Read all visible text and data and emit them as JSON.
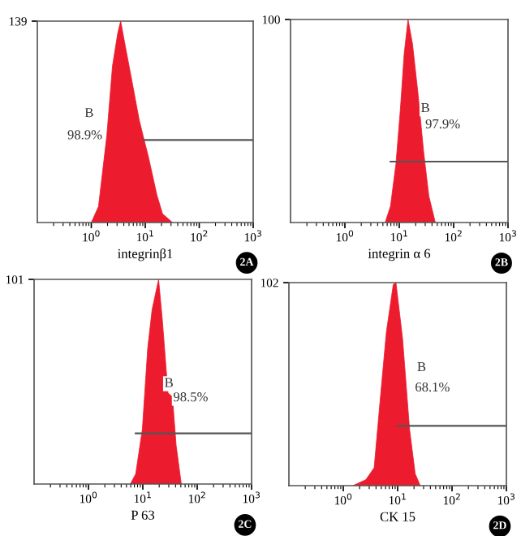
{
  "chart_data": [
    {
      "type": "area",
      "xlabel": "integrinβ1",
      "log": "x",
      "xlim": [
        0.1,
        1000
      ],
      "xticks": [
        {
          "value": 1,
          "label": "10$^{0}$"
        },
        {
          "value": 10,
          "label": "10$^{1}$"
        },
        {
          "value": 100,
          "label": "10$^{2}$"
        },
        {
          "value": 1000,
          "label": "10$^{3}$"
        }
      ],
      "ylim": [
        0,
        139
      ],
      "yticks": [
        139
      ],
      "series": [
        {
          "color": "#ec1c2e",
          "x": [
            1,
            1.36,
            1.94,
            2.47,
            3.1,
            3.5,
            4.2,
            5.7,
            7.7,
            9.1,
            11.5,
            16.4,
            20.9,
            32
          ],
          "values": [
            0,
            11,
            60,
            108,
            131,
            139,
            123,
            97,
            71,
            60,
            45,
            19,
            6,
            0
          ]
        },
        {
          "type": "line",
          "color": "#555555",
          "x": [
            9.1,
            1000
          ],
          "values": [
            57,
            57
          ]
        }
      ],
      "annotations": [
        "B",
        "98.9%",
        "2A"
      ]
    },
    {
      "type": "area",
      "xlabel": "integrin α 6",
      "log": "x",
      "xlim": [
        0.1,
        1000
      ],
      "xticks": [
        {
          "value": 1,
          "label": "10$^{0}$"
        },
        {
          "value": 10,
          "label": "10$^{1}$"
        },
        {
          "value": 100,
          "label": "10$^{2}$"
        },
        {
          "value": 1000,
          "label": "10$^{3}$"
        }
      ],
      "ylim": [
        0,
        100
      ],
      "yticks": [
        100
      ],
      "series": [
        {
          "color": "#ec1c2e",
          "x": [
            5.5,
            6.9,
            8.7,
            10.5,
            12.3,
            14.5,
            17.5,
            22,
            28,
            35,
            46
          ],
          "values": [
            0,
            8,
            29,
            56,
            83,
            100,
            88,
            64,
            35,
            13,
            0
          ]
        },
        {
          "type": "line",
          "color": "#555555",
          "x": [
            6.9,
            1000
          ],
          "values": [
            30,
            30
          ]
        }
      ],
      "annotations": [
        "B",
        "97.9%",
        "2B"
      ]
    },
    {
      "type": "area",
      "xlabel": "P 63",
      "log": "x",
      "xlim": [
        0.1,
        1000
      ],
      "xticks": [
        {
          "value": 1,
          "label": "10$^{0}$"
        },
        {
          "value": 10,
          "label": "10$^{1}$"
        },
        {
          "value": 100,
          "label": "10$^{2}$"
        },
        {
          "value": 1000,
          "label": "10$^{3}$"
        }
      ],
      "ylim": [
        0,
        101
      ],
      "yticks": [
        101
      ],
      "series": [
        {
          "color": "#ec1c2e",
          "x": [
            5.9,
            7.4,
            9.8,
            12.3,
            14.8,
            19.5,
            23,
            29,
            35,
            41,
            51
          ],
          "values": [
            0,
            5,
            27,
            67,
            86,
            101,
            80,
            45,
            43,
            19,
            0
          ]
        },
        {
          "type": "line",
          "color": "#555555",
          "x": [
            7.4,
            1000
          ],
          "values": [
            25,
            25
          ]
        }
      ],
      "annotations": [
        "B",
        "98.5%",
        "2C"
      ]
    },
    {
      "type": "area",
      "xlabel": "CK 15",
      "log": "x",
      "xlim": [
        0.1,
        1000
      ],
      "xticks": [
        {
          "value": 1,
          "label": "10$^{0}$"
        },
        {
          "value": 10,
          "label": "10$^{1}$"
        },
        {
          "value": 100,
          "label": "10$^{2}$"
        },
        {
          "value": 1000,
          "label": "10$^{3}$"
        }
      ],
      "ylim": [
        0,
        102
      ],
      "yticks": [
        102
      ],
      "series": [
        {
          "color": "#ec1c2e",
          "x": [
            1.5,
            2.6,
            3.7,
            4.7,
            6.2,
            8.3,
            9.3,
            12.3,
            16.6,
            21,
            26
          ],
          "values": [
            0,
            3,
            9,
            41,
            77,
            101,
            102,
            74,
            28,
            6,
            0
          ]
        },
        {
          "type": "line",
          "color": "#555555",
          "x": [
            10,
            1000
          ],
          "values": [
            30,
            30
          ]
        }
      ],
      "annotations": [
        "B",
        "68.1%",
        "2D"
      ]
    }
  ]
}
